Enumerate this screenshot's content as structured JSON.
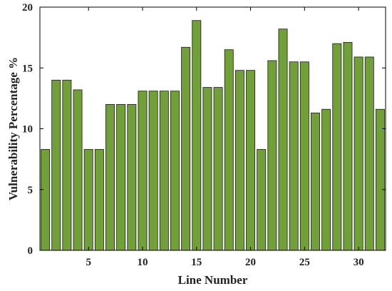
{
  "chart_data": {
    "type": "bar",
    "xlabel": "Line Number",
    "ylabel": "Vulnerability Percentage %",
    "categories": [
      1,
      2,
      3,
      4,
      5,
      6,
      7,
      8,
      9,
      10,
      11,
      12,
      13,
      14,
      15,
      16,
      17,
      18,
      19,
      20,
      21,
      22,
      23,
      24,
      25,
      26,
      27,
      28,
      29,
      30,
      31,
      32
    ],
    "values": [
      8.3,
      14.0,
      14.0,
      13.2,
      8.3,
      8.3,
      12.0,
      12.0,
      12.0,
      13.1,
      13.1,
      13.1,
      13.1,
      16.7,
      18.9,
      13.4,
      13.4,
      16.5,
      14.8,
      14.8,
      8.3,
      15.6,
      18.2,
      15.5,
      15.5,
      11.3,
      11.6,
      17.0,
      17.1,
      15.9,
      15.9,
      11.6
    ],
    "xticks": [
      5,
      10,
      15,
      20,
      25,
      30
    ],
    "yticks": [
      0,
      5,
      10,
      15,
      20
    ],
    "ylim": [
      0,
      20
    ],
    "xlim": [
      0.5,
      32.5
    ],
    "bar_color": "#70A037",
    "bar_edge_color": "#1a1a1a",
    "grid": false
  }
}
